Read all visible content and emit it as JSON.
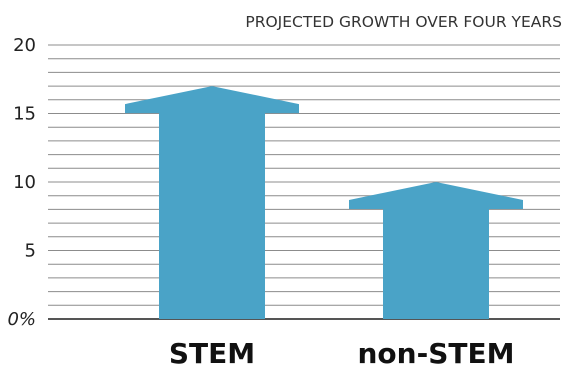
{
  "chart_data": {
    "type": "bar",
    "title": "PROJECTED GROWTH OVER FOUR YEARS",
    "categories": [
      "STEM",
      "non-STEM"
    ],
    "values": [
      17,
      10
    ],
    "ylim": [
      0,
      20
    ],
    "yticks": [
      0,
      5,
      10,
      15,
      20
    ],
    "ytick_labels": [
      "0%",
      "5",
      "10",
      "15",
      "20"
    ],
    "minor_step": 1,
    "grid": true,
    "bar_shape": "arrow",
    "colors": {
      "bar": "#4aa3c7",
      "grid": "#8c8c8c",
      "text": "#222222"
    }
  }
}
